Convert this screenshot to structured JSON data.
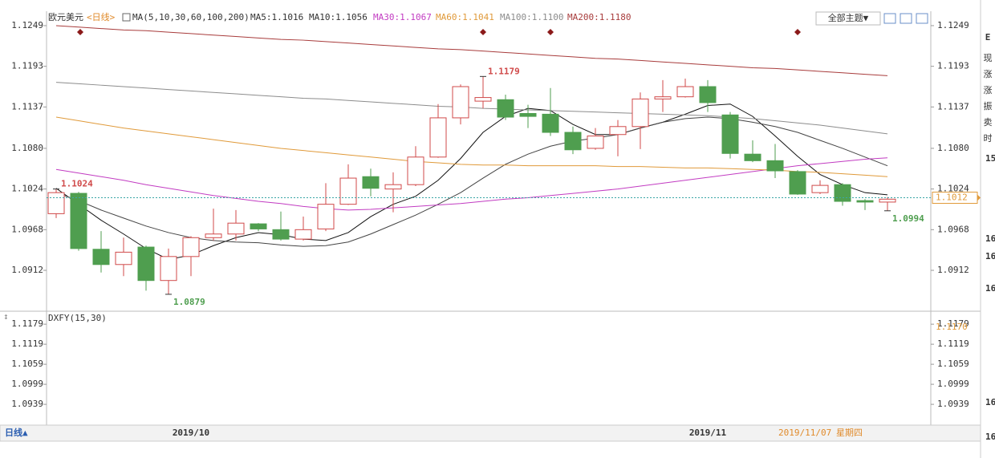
{
  "header": {
    "symbol": "欧元美元",
    "period": "<日线>",
    "indicator": "MA(5,10,30,60,100,200)",
    "theme_button": "全部主题▼"
  },
  "chart_data": [
    {
      "type": "candlestick",
      "categories": [
        null,
        null,
        null,
        null,
        null,
        null,
        "2019/10",
        null,
        null,
        null,
        null,
        null,
        null,
        null,
        null,
        null,
        null,
        null,
        null,
        null,
        null,
        null,
        null,
        null,
        null,
        null,
        null,
        null,
        null,
        "2019/11",
        null,
        null,
        null,
        null,
        null,
        null,
        null,
        null
      ],
      "open": [
        1.099,
        1.1018,
        1.0941,
        1.092,
        1.0944,
        1.0898,
        1.0931,
        1.0957,
        1.0962,
        1.0976,
        1.0968,
        1.0955,
        1.0969,
        1.1003,
        1.1041,
        1.1024,
        1.103,
        1.1068,
        1.1122,
        1.1145,
        1.1147,
        1.1128,
        1.1127,
        1.1102,
        1.108,
        1.1099,
        1.111,
        1.1148,
        1.1151,
        1.1165,
        1.1126,
        1.1072,
        1.1063,
        1.1048,
        1.1019,
        1.103,
        1.1008,
        1.1006
      ],
      "high": [
        1.1024,
        1.102,
        1.0966,
        1.0957,
        1.0946,
        1.0942,
        1.0959,
        1.0997,
        1.0995,
        1.0977,
        1.0993,
        1.0986,
        1.1032,
        1.1058,
        1.1052,
        1.1047,
        1.1083,
        1.1141,
        1.1168,
        1.1179,
        1.1154,
        1.114,
        1.1163,
        1.111,
        1.1108,
        1.1119,
        1.1157,
        1.1174,
        1.1176,
        1.1174,
        1.113,
        1.1091,
        1.1086,
        1.105,
        1.1036,
        1.1032,
        1.101,
        1.1013
      ],
      "low": [
        1.0984,
        1.0939,
        1.0909,
        1.0904,
        1.0884,
        1.0879,
        1.0904,
        1.0953,
        1.0953,
        1.0966,
        1.0953,
        1.0953,
        1.0966,
        1.1002,
        1.1014,
        1.0992,
        1.1028,
        1.1067,
        1.1113,
        1.1135,
        1.1119,
        1.1108,
        1.1097,
        1.1072,
        1.1078,
        1.1069,
        1.1079,
        1.113,
        1.115,
        1.113,
        1.1066,
        1.1061,
        1.1039,
        1.1016,
        1.1017,
        1.1001,
        1.0995,
        1.0994
      ],
      "close": [
        1.1019,
        1.0942,
        1.092,
        1.0937,
        1.0898,
        1.0931,
        1.0957,
        1.0962,
        1.0977,
        1.0969,
        1.0955,
        1.0968,
        1.1003,
        1.1039,
        1.1025,
        1.103,
        1.1068,
        1.1122,
        1.1165,
        1.115,
        1.1123,
        1.1124,
        1.1102,
        1.1078,
        1.1097,
        1.111,
        1.1148,
        1.1151,
        1.1165,
        1.1143,
        1.1073,
        1.1063,
        1.1049,
        1.1017,
        1.1029,
        1.1007,
        1.1006,
        1.101
      ],
      "up_color": "#d04a4a",
      "down_color": "#4f9e4f",
      "series": [
        {
          "name": "MA5",
          "legend_label": "MA5:1.1016",
          "color": "#111111",
          "values": [
            1.1025,
            1.1003,
            1.0981,
            1.0962,
            1.0942,
            1.0927,
            1.0933,
            1.0946,
            1.0957,
            1.0964,
            1.0961,
            1.0955,
            1.0953,
            1.0964,
            1.0986,
            1.1003,
            1.1014,
            1.1036,
            1.1066,
            1.1102,
            1.1124,
            1.1135,
            1.1132,
            1.1113,
            1.1099,
            1.1099,
            1.1108,
            1.1116,
            1.1127,
            1.1139,
            1.1141,
            1.1124,
            1.1097,
            1.1069,
            1.1044,
            1.103,
            1.1019,
            1.1016
          ]
        },
        {
          "name": "MA10",
          "legend_label": "MA10:1.1056",
          "color": "#444444",
          "values": [
            1.1019,
            1.1008,
            1.0995,
            1.0984,
            1.0973,
            1.0964,
            1.0957,
            1.0953,
            1.0951,
            1.095,
            1.0947,
            1.0945,
            1.0946,
            1.0951,
            1.0962,
            1.0975,
            1.0988,
            1.1003,
            1.1019,
            1.1039,
            1.1058,
            1.1072,
            1.1083,
            1.109,
            1.1094,
            1.1099,
            1.1108,
            1.1116,
            1.1121,
            1.1123,
            1.1121,
            1.1116,
            1.111,
            1.1102,
            1.1091,
            1.108,
            1.1068,
            1.1056
          ]
        },
        {
          "name": "MA30",
          "legend_label": "MA30:1.1067",
          "color": "#c23cc2",
          "values": [
            1.1051,
            1.1046,
            1.1041,
            1.1036,
            1.103,
            1.1025,
            1.102,
            1.1015,
            1.1011,
            1.1007,
            1.1004,
            1.1,
            1.0997,
            1.0995,
            1.0996,
            1.0998,
            1.1,
            1.1002,
            1.1004,
            1.1007,
            1.101,
            1.1012,
            1.1015,
            1.1018,
            1.1021,
            1.1024,
            1.1028,
            1.1032,
            1.1036,
            1.104,
            1.1044,
            1.1048,
            1.1052,
            1.1056,
            1.1059,
            1.1062,
            1.1065,
            1.1067
          ]
        },
        {
          "name": "MA60",
          "legend_label": "MA60:1.1041",
          "color": "#e09a3a",
          "values": [
            1.1123,
            1.1118,
            1.1113,
            1.1108,
            1.1104,
            1.11,
            1.1096,
            1.1092,
            1.1088,
            1.1084,
            1.108,
            1.1077,
            1.1074,
            1.1071,
            1.1068,
            1.1065,
            1.1062,
            1.106,
            1.1058,
            1.1057,
            1.1057,
            1.1056,
            1.1056,
            1.1056,
            1.1056,
            1.1055,
            1.1055,
            1.1054,
            1.1053,
            1.1053,
            1.1052,
            1.1051,
            1.105,
            1.1048,
            1.1047,
            1.1045,
            1.1043,
            1.1041
          ]
        },
        {
          "name": "MA100",
          "legend_label": "MA100:1.1100",
          "color": "#8c8c8c",
          "values": [
            1.1171,
            1.1169,
            1.1167,
            1.1165,
            1.1163,
            1.1161,
            1.1159,
            1.1157,
            1.1155,
            1.1153,
            1.1151,
            1.1149,
            1.1148,
            1.1146,
            1.1144,
            1.1142,
            1.114,
            1.1138,
            1.1137,
            1.1135,
            1.1134,
            1.1133,
            1.1132,
            1.1131,
            1.113,
            1.1129,
            1.1128,
            1.1127,
            1.1126,
            1.1125,
            1.1123,
            1.1121,
            1.1118,
            1.1115,
            1.1112,
            1.1108,
            1.1104,
            1.11
          ]
        },
        {
          "name": "MA200",
          "legend_label": "MA200:1.1180",
          "color": "#a83c3c",
          "values": [
            1.1249,
            1.1247,
            1.1245,
            1.1243,
            1.1242,
            1.124,
            1.1238,
            1.1236,
            1.1234,
            1.1232,
            1.123,
            1.1229,
            1.1227,
            1.1225,
            1.1223,
            1.1221,
            1.1219,
            1.1217,
            1.1216,
            1.1214,
            1.1212,
            1.121,
            1.1208,
            1.1206,
            1.1204,
            1.1203,
            1.1201,
            1.1199,
            1.1197,
            1.1195,
            1.1193,
            1.1191,
            1.119,
            1.1188,
            1.1186,
            1.1184,
            1.1182,
            1.118
          ]
        }
      ],
      "annotations": [
        1.1024,
        1.1179,
        1.0879,
        1.0994
      ],
      "current_price": 1.1012,
      "ylim": [
        1.0859,
        1.126
      ],
      "yticks": [
        1.1249,
        1.1193,
        1.1137,
        {
          "value": 1.108,
          "label": "1.1080"
        },
        1.1024,
        1.0968,
        1.0912
      ]
    },
    {
      "type": "indicator",
      "title": "DXFY(15,30)",
      "current_value": {
        "value": 1.117,
        "label": "1.1170"
      },
      "ylim": [
        1.0896,
        1.1213
      ],
      "yticks": [
        1.1179,
        1.1119,
        1.1059,
        1.0999,
        1.0939
      ]
    }
  ],
  "footer": {
    "period_button": "日线▲",
    "date": "2019/11/07",
    "weekday": "星期四"
  },
  "side_panel": {
    "title": "E",
    "labels": [
      "现",
      "涨",
      "涨",
      "振",
      "卖",
      "时"
    ],
    "numbers": [
      "15",
      "16",
      "16",
      "16",
      "16",
      "16"
    ]
  }
}
